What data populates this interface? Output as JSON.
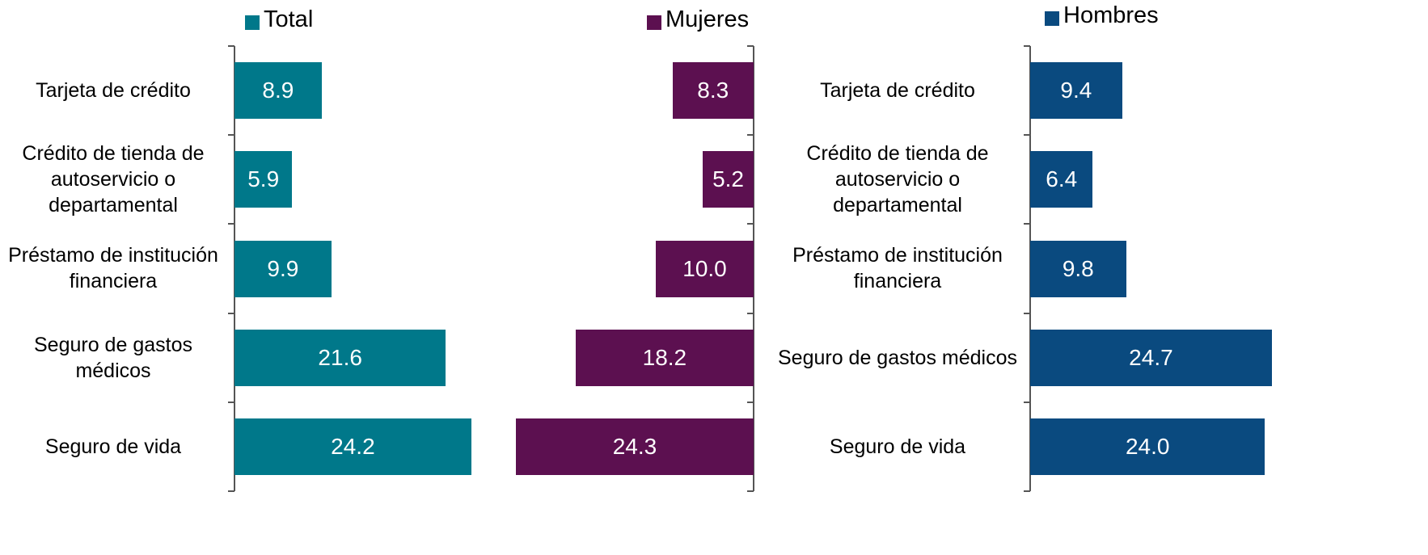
{
  "chart_data": [
    {
      "type": "bar",
      "series_name": "Total",
      "color": "#00788a",
      "categories": [
        "Tarjeta de crédito",
        "Crédito de tienda de autoservicio o departamental",
        "Préstamo de institución financiera",
        "Seguro de gastos médicos",
        "Seguro de vida"
      ],
      "values": [
        8.9,
        5.9,
        9.9,
        21.6,
        24.2
      ],
      "value_labels": [
        "8.9",
        "5.9",
        "9.9",
        "21.6",
        "24.2"
      ],
      "direction": "right"
    },
    {
      "type": "bar",
      "series_name": "Mujeres",
      "color": "#5c1050",
      "categories": [
        null,
        null,
        null,
        null,
        null
      ],
      "values": [
        8.3,
        5.2,
        10.0,
        18.2,
        24.3
      ],
      "value_labels": [
        "8.3",
        "5.2",
        "10.0",
        "18.2",
        "24.3"
      ],
      "direction": "left"
    },
    {
      "type": "bar",
      "series_name": "Hombres",
      "color": "#0a4a7f",
      "categories": [
        "Tarjeta de crédito",
        "Crédito de tienda de autoservicio o departamental",
        "Préstamo de institución financiera",
        "Seguro de gastos médicos",
        "Seguro de vida"
      ],
      "values": [
        9.4,
        6.4,
        9.8,
        24.7,
        24.0
      ],
      "value_labels": [
        "9.4",
        "6.4",
        "9.8",
        "24.7",
        "24.0"
      ],
      "direction": "right"
    }
  ]
}
